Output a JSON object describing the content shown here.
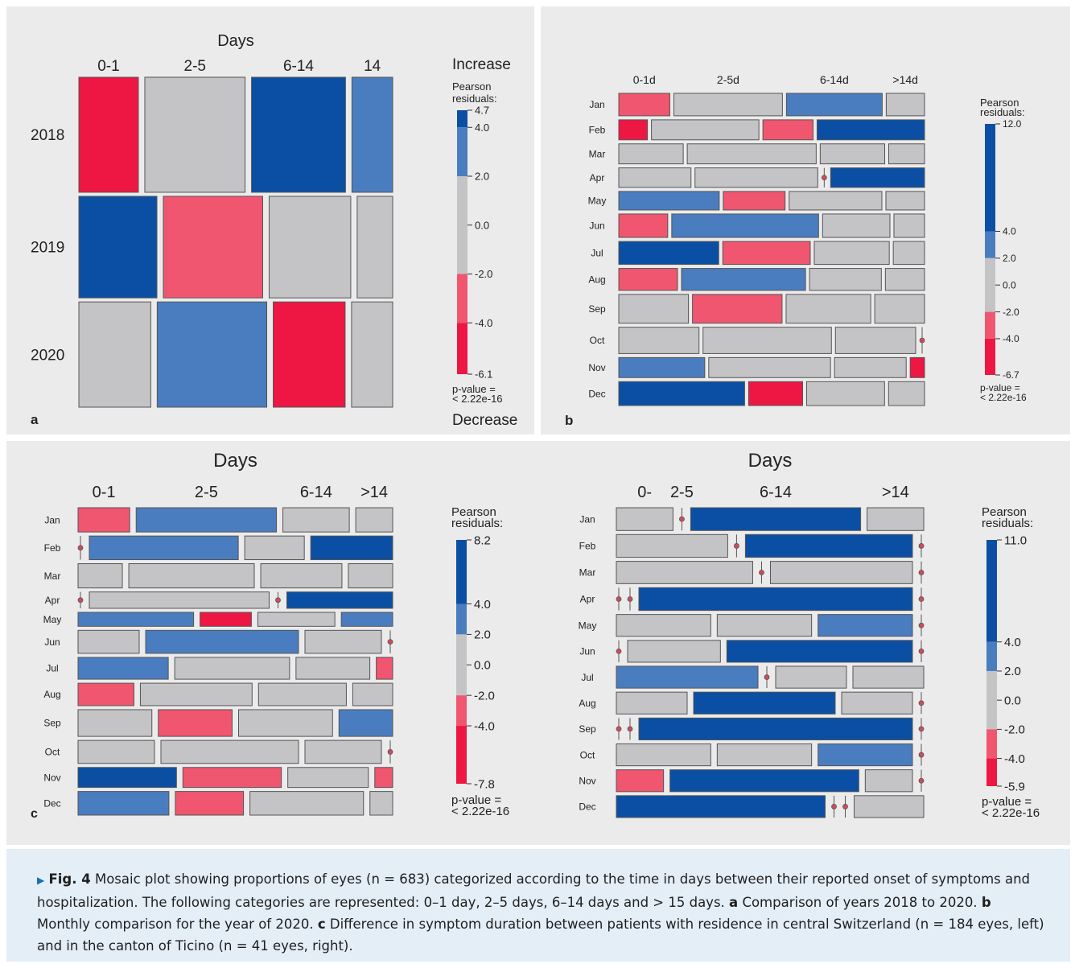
{
  "colors": {
    "strong_pos": "#0a4fa3",
    "mod_pos": "#4a7dbf",
    "neutral": "#c4c4c7",
    "mod_neg": "#f0566f",
    "strong_neg": "#ee1744",
    "panel_bg": "#ebebeb",
    "caption_bg": "#e4eef6",
    "accent": "#1a6fb3"
  },
  "chart_data": [
    {
      "panel": "a",
      "type": "mosaic",
      "title": "Days",
      "categories": [
        "0-1",
        "2-5",
        "6-14",
        "14"
      ],
      "rows": [
        "2018",
        "2019",
        "2020"
      ],
      "counts": [
        [
          38,
          64,
          60,
          26
        ],
        [
          44,
          56,
          46,
          20
        ],
        [
          42,
          64,
          42,
          24
        ]
      ],
      "residual_class": [
        [
          -2,
          0,
          2,
          1
        ],
        [
          2,
          -1,
          0,
          0
        ],
        [
          0,
          1,
          -2,
          0
        ]
      ],
      "legend": {
        "top_label": "Increase",
        "bottom_label": "Decrease",
        "title": "Pearson residuals:",
        "max": "4.7",
        "min": "-6.1",
        "ticks": [
          "4.0",
          "2.0",
          "0.0",
          "-2.0",
          "-4.0"
        ],
        "p_label": "p-value =",
        "p_value": "< 2.22e-16"
      }
    },
    {
      "panel": "b",
      "type": "mosaic",
      "title": "",
      "categories": [
        "0-1d",
        "2-5d",
        "6-14d",
        ">14d"
      ],
      "rows": [
        "Jan",
        "Feb",
        "Mar",
        "Apr",
        "May",
        "Jun",
        "Jul",
        "Aug",
        "Sep",
        "Oct",
        "Nov",
        "Dec"
      ],
      "counts": [
        [
          8,
          17,
          15,
          6
        ],
        [
          4,
          15,
          7,
          15
        ],
        [
          9,
          18,
          9,
          5
        ],
        [
          10,
          17,
          0,
          13
        ],
        [
          13,
          8,
          12,
          5
        ],
        [
          8,
          24,
          11,
          5
        ],
        [
          16,
          14,
          12,
          5
        ],
        [
          9,
          19,
          11,
          6
        ],
        [
          14,
          18,
          17,
          10
        ],
        [
          15,
          24,
          15,
          0
        ],
        [
          12,
          17,
          10,
          2
        ],
        [
          21,
          9,
          13,
          6
        ]
      ],
      "residual_class": [
        [
          -1,
          0,
          1,
          0
        ],
        [
          -2,
          0,
          -1,
          2
        ],
        [
          0,
          0,
          0,
          0
        ],
        [
          0,
          0,
          0,
          2
        ],
        [
          1,
          -1,
          0,
          0
        ],
        [
          -1,
          1,
          0,
          0
        ],
        [
          2,
          -1,
          0,
          0
        ],
        [
          -1,
          1,
          0,
          0
        ],
        [
          0,
          -1,
          0,
          0
        ],
        [
          0,
          0,
          0,
          0
        ],
        [
          1,
          0,
          0,
          -2
        ],
        [
          2,
          -2,
          0,
          0
        ]
      ],
      "legend": {
        "title": "Pearson residuals:",
        "max": "12.0",
        "min": "-6.7",
        "ticks": [
          "4.0",
          "2.0",
          "0.0",
          "-2.0",
          "-4.0"
        ],
        "p_label": "p-value =",
        "p_value": "< 2.22e-16"
      }
    },
    {
      "panel": "c",
      "type": "mosaic",
      "title": "Days",
      "categories": [
        "0-1",
        "2-5",
        "6-14",
        ">14"
      ],
      "rows": [
        "Jan",
        "Feb",
        "Mar",
        "Apr",
        "May",
        "Jun",
        "Jul",
        "Aug",
        "Sep",
        "Oct",
        "Nov",
        "Dec"
      ],
      "counts": [
        [
          7,
          19,
          9,
          5
        ],
        [
          0,
          20,
          8,
          11
        ],
        [
          6,
          17,
          11,
          6
        ],
        [
          0,
          17,
          0,
          10
        ],
        [
          9,
          4,
          6,
          4
        ],
        [
          8,
          20,
          10,
          0
        ],
        [
          11,
          14,
          9,
          2
        ],
        [
          7,
          14,
          11,
          5
        ],
        [
          11,
          11,
          14,
          8
        ],
        [
          10,
          18,
          10,
          0
        ],
        [
          11,
          11,
          9,
          2
        ],
        [
          12,
          9,
          15,
          3
        ]
      ],
      "residual_class": [
        [
          -1,
          1,
          0,
          0
        ],
        [
          0,
          1,
          0,
          2
        ],
        [
          0,
          0,
          0,
          0
        ],
        [
          0,
          0,
          0,
          2
        ],
        [
          1,
          -2,
          0,
          1
        ],
        [
          0,
          1,
          0,
          0
        ],
        [
          1,
          0,
          0,
          -1
        ],
        [
          -1,
          0,
          0,
          0
        ],
        [
          0,
          -1,
          0,
          1
        ],
        [
          0,
          0,
          0,
          0
        ],
        [
          2,
          -1,
          0,
          -1
        ],
        [
          1,
          -1,
          0,
          0
        ]
      ],
      "legend": {
        "title": "Pearson residuals:",
        "max": "8.2",
        "min": "-7.8",
        "ticks": [
          "4.0",
          "2.0",
          "0.0",
          "-2.0",
          "-4.0"
        ],
        "p_label": "p-value =",
        "p_value": "< 2.22e-16"
      }
    },
    {
      "panel": "",
      "type": "mosaic",
      "title": "Days",
      "categories": [
        "0-",
        "2-5",
        "6-14",
        ">14"
      ],
      "rows": [
        "Jan",
        "Feb",
        "Mar",
        "Apr",
        "May",
        "Jun",
        "Jul",
        "Aug",
        "Sep",
        "Oct",
        "Nov",
        "Dec"
      ],
      "counts": [
        [
          10,
          0,
          30,
          10
        ],
        [
          20,
          0,
          30,
          0
        ],
        [
          24,
          0,
          25,
          0
        ],
        [
          0,
          0,
          50,
          0
        ],
        [
          16,
          16,
          16,
          0
        ],
        [
          0,
          16,
          32,
          0
        ],
        [
          24,
          0,
          12,
          12
        ],
        [
          12,
          24,
          12,
          0
        ],
        [
          0,
          0,
          48,
          0
        ],
        [
          16,
          16,
          16,
          0
        ],
        [
          8,
          32,
          8,
          0
        ],
        [
          36,
          0,
          0,
          12
        ]
      ],
      "residual_class": [
        [
          0,
          0,
          2,
          0
        ],
        [
          0,
          0,
          2,
          0
        ],
        [
          0,
          0,
          0,
          0
        ],
        [
          0,
          0,
          2,
          0
        ],
        [
          0,
          0,
          1,
          0
        ],
        [
          0,
          0,
          2,
          0
        ],
        [
          1,
          0,
          0,
          0
        ],
        [
          0,
          2,
          0,
          0
        ],
        [
          0,
          0,
          2,
          0
        ],
        [
          0,
          0,
          1,
          0
        ],
        [
          -1,
          2,
          0,
          0
        ],
        [
          2,
          0,
          0,
          0
        ]
      ],
      "legend": {
        "title": "Pearson residuals:",
        "max": "11.0",
        "min": "-5.9",
        "ticks": [
          "4.0",
          "2.0",
          "0.0",
          "-2.0",
          "-4.0"
        ],
        "p_label": "p-value =",
        "p_value": "< 2.22e-16"
      }
    }
  ],
  "caption": {
    "fig_label": "Fig. 4",
    "intro": "Mosaic plot showing proportions of eyes (n = 683) categorized according to the time in days between their reported onset of symptoms and hospitalization. The following categories are represented: 0–1 day, 2–5 days, 6–14 days and > 15 days.",
    "a_label": "a",
    "a_text": "Comparison of years 2018 to 2020.",
    "b_label": "b",
    "b_text": "Monthly comparison for the year of 2020.",
    "c_label": "c",
    "c_text": "Difference in symptom duration between patients with residence in central Switzerland (n = 184 eyes, left) and in the canton of Ticino (n = 41 eyes, right)."
  }
}
